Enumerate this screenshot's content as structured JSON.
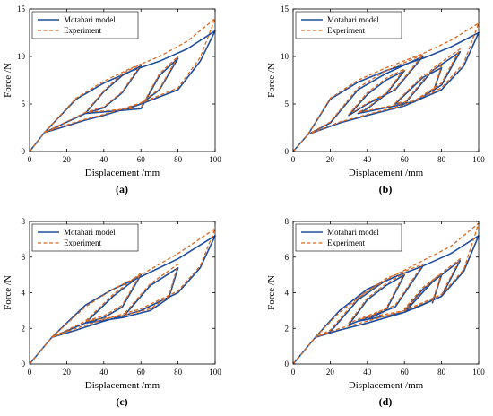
{
  "colors": {
    "model": "#1f4e9c",
    "experiment": "#d9691f",
    "axis": "#000000",
    "background": "#ffffff"
  },
  "chart_data": [
    {
      "type": "line",
      "panel_label": "(a)",
      "xlabel": "Displacement /mm",
      "ylabel": "Force /N",
      "xlim": [
        0,
        100
      ],
      "ylim": [
        0,
        15
      ],
      "xticks": [
        0,
        20,
        40,
        60,
        80,
        100
      ],
      "yticks": [
        0,
        5,
        10,
        15
      ],
      "grid": false,
      "legend_position": "top-left",
      "series": [
        {
          "name": "Motahari model",
          "style": "solid",
          "x": [
            0,
            8,
            25,
            40,
            55,
            70,
            85,
            100,
            92,
            80,
            60,
            40,
            30,
            15,
            8,
            30,
            40,
            50,
            60,
            50,
            40,
            30,
            60,
            70,
            80,
            70,
            60,
            50
          ],
          "y": [
            0,
            2.0,
            5.5,
            7.2,
            8.5,
            9.5,
            10.8,
            12.7,
            9.5,
            6.5,
            5.0,
            3.8,
            3.3,
            2.4,
            2.0,
            4.0,
            6.3,
            8.0,
            9.0,
            6.2,
            4.6,
            4.0,
            4.5,
            8.0,
            9.8,
            6.5,
            5.0,
            4.3
          ]
        },
        {
          "name": "Experiment",
          "style": "dashed",
          "x": [
            0,
            8,
            25,
            40,
            55,
            70,
            85,
            100,
            92,
            80,
            60,
            40,
            30,
            15,
            8,
            30,
            40,
            50,
            60,
            50,
            40,
            30,
            60,
            70,
            80,
            70,
            60,
            50
          ],
          "y": [
            0,
            2.0,
            5.6,
            7.4,
            8.8,
            10.0,
            11.6,
            14.0,
            9.9,
            6.7,
            5.1,
            3.9,
            3.4,
            2.5,
            2.0,
            4.1,
            6.4,
            8.2,
            9.2,
            6.3,
            4.7,
            4.1,
            4.6,
            8.2,
            10.0,
            6.6,
            5.1,
            4.4
          ]
        }
      ]
    },
    {
      "type": "line",
      "panel_label": "(b)",
      "xlabel": "Displacement /mm",
      "ylabel": "Force /N",
      "xlim": [
        0,
        100
      ],
      "ylim": [
        0,
        15
      ],
      "xticks": [
        0,
        20,
        40,
        60,
        80,
        100
      ],
      "yticks": [
        0,
        5,
        10,
        15
      ],
      "grid": false,
      "legend_position": "top-left",
      "series": [
        {
          "name": "Motahari model",
          "style": "solid",
          "x": [
            0,
            8,
            20,
            35,
            50,
            70,
            85,
            100,
            92,
            80,
            60,
            40,
            25,
            8,
            20,
            35,
            50,
            70,
            55,
            40,
            30,
            40,
            50,
            60,
            50,
            40,
            35,
            60,
            75,
            90,
            80,
            65,
            55,
            70,
            80,
            75
          ],
          "y": [
            0,
            1.8,
            5.5,
            7.3,
            8.5,
            9.8,
            11.0,
            12.5,
            9.0,
            6.5,
            4.8,
            3.8,
            3.0,
            1.8,
            3.0,
            6.5,
            8.2,
            10.0,
            6.5,
            5.0,
            3.8,
            6.0,
            7.5,
            8.5,
            6.0,
            4.5,
            4.0,
            5.0,
            8.5,
            10.5,
            7.0,
            5.2,
            5.0,
            7.8,
            8.8,
            6.0
          ]
        },
        {
          "name": "Experiment",
          "style": "dashed",
          "x": [
            0,
            8,
            20,
            35,
            50,
            70,
            85,
            100,
            92,
            80,
            60,
            40,
            25,
            8,
            20,
            35,
            50,
            70,
            55,
            40,
            30,
            40,
            50,
            60,
            50,
            40,
            35,
            60,
            75,
            90,
            80,
            65,
            55,
            70,
            80,
            75
          ],
          "y": [
            0,
            1.8,
            5.6,
            7.5,
            8.8,
            10.3,
            11.7,
            13.5,
            9.3,
            6.7,
            4.9,
            3.9,
            3.1,
            1.8,
            3.1,
            6.7,
            8.5,
            10.2,
            6.6,
            5.1,
            3.9,
            6.2,
            7.7,
            8.7,
            6.1,
            4.6,
            4.1,
            5.1,
            8.7,
            10.8,
            7.2,
            5.3,
            5.1,
            8.0,
            9.0,
            6.1
          ]
        }
      ]
    },
    {
      "type": "line",
      "panel_label": "(c)",
      "xlabel": "Displacement /mm",
      "ylabel": "Force /N",
      "xlim": [
        0,
        100
      ],
      "ylim": [
        0,
        8
      ],
      "xticks": [
        0,
        20,
        40,
        60,
        80,
        100
      ],
      "yticks": [
        0,
        2,
        4,
        6,
        8
      ],
      "grid": false,
      "legend_position": "top-left",
      "series": [
        {
          "name": "Motahari model",
          "style": "solid",
          "x": [
            0,
            12,
            30,
            45,
            60,
            80,
            100,
            92,
            80,
            60,
            40,
            25,
            12,
            30,
            45,
            60,
            50,
            40,
            30,
            50,
            65,
            80,
            75,
            65,
            50
          ],
          "y": [
            0,
            1.5,
            3.3,
            4.2,
            4.9,
            5.9,
            7.2,
            5.4,
            4.0,
            3.0,
            2.4,
            1.9,
            1.5,
            2.3,
            3.8,
            5.0,
            3.2,
            2.6,
            2.3,
            2.6,
            4.4,
            5.4,
            3.7,
            3.0,
            2.6
          ]
        },
        {
          "name": "Experiment",
          "style": "dashed",
          "x": [
            0,
            12,
            30,
            45,
            60,
            80,
            100,
            92,
            80,
            60,
            40,
            25,
            12,
            30,
            45,
            60,
            50,
            40,
            30,
            50,
            65,
            80,
            75,
            65,
            50
          ],
          "y": [
            0,
            1.5,
            3.2,
            4.2,
            5.0,
            6.2,
            7.6,
            5.5,
            4.1,
            3.1,
            2.5,
            2.0,
            1.5,
            2.4,
            3.9,
            5.1,
            3.3,
            2.7,
            2.4,
            2.7,
            4.5,
            5.6,
            3.8,
            3.1,
            2.7
          ]
        }
      ]
    },
    {
      "type": "line",
      "panel_label": "(d)",
      "xlabel": "Displacement /mm",
      "ylabel": "Force /N",
      "xlim": [
        0,
        100
      ],
      "ylim": [
        0,
        8
      ],
      "xticks": [
        0,
        20,
        40,
        60,
        80,
        100
      ],
      "yticks": [
        0,
        2,
        4,
        6,
        8
      ],
      "grid": false,
      "legend_position": "top-left",
      "series": [
        {
          "name": "Motahari model",
          "style": "solid",
          "x": [
            0,
            12,
            25,
            40,
            55,
            70,
            85,
            100,
            92,
            80,
            60,
            40,
            25,
            12,
            20,
            35,
            50,
            70,
            55,
            40,
            30,
            40,
            50,
            60,
            50,
            40,
            35,
            60,
            75,
            90,
            80,
            65,
            60,
            70,
            80,
            75
          ],
          "y": [
            0,
            1.5,
            3.0,
            4.2,
            4.9,
            5.5,
            6.2,
            7.2,
            5.2,
            3.8,
            2.9,
            2.3,
            1.9,
            1.5,
            1.8,
            3.6,
            4.7,
            5.5,
            3.2,
            2.6,
            2.2,
            3.6,
            4.4,
            5.0,
            3.0,
            2.5,
            2.4,
            2.9,
            4.6,
            5.8,
            3.8,
            3.1,
            3.0,
            4.2,
            5.0,
            3.4
          ]
        },
        {
          "name": "Experiment",
          "style": "dashed",
          "x": [
            0,
            12,
            25,
            40,
            55,
            70,
            85,
            100,
            92,
            80,
            60,
            40,
            25,
            12,
            20,
            35,
            50,
            70,
            55,
            40,
            30,
            40,
            50,
            60,
            50,
            40,
            35,
            60,
            75,
            90,
            80,
            65,
            60,
            70,
            80,
            75
          ],
          "y": [
            0,
            1.5,
            2.9,
            4.1,
            5.0,
            5.8,
            6.6,
            7.9,
            5.3,
            3.9,
            3.0,
            2.4,
            2.0,
            1.5,
            1.9,
            3.7,
            4.8,
            5.6,
            3.3,
            2.7,
            2.3,
            3.7,
            4.5,
            5.1,
            3.1,
            2.6,
            2.5,
            3.0,
            4.7,
            5.9,
            3.9,
            3.2,
            3.1,
            4.3,
            5.1,
            3.5
          ]
        }
      ]
    }
  ]
}
